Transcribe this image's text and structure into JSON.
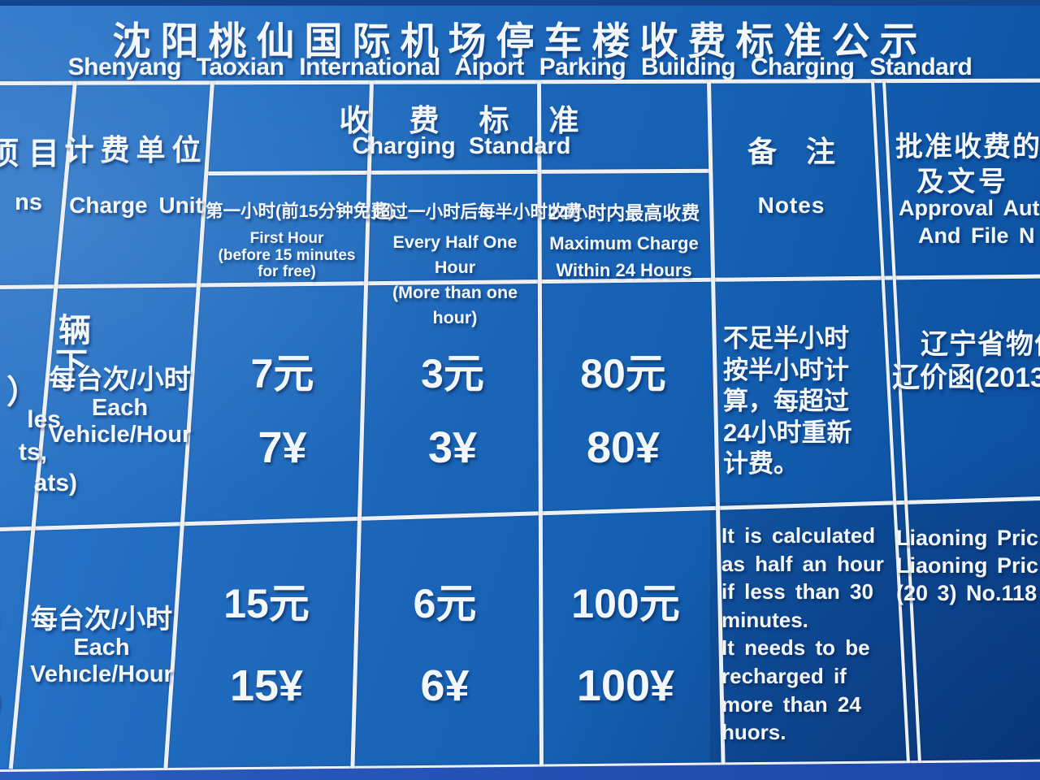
{
  "title": {
    "cn": "沈阳桃仙国际机场停车楼收费标准公示",
    "en": "Shenyang Taoxian International Aiport Parking Building Charging Standard"
  },
  "colors": {
    "sign_blue": "#1560b2",
    "sign_blue_dark": "#0d4d9d",
    "grid_line_white": "#edf1f5",
    "bottom_strip_blue": "#2253b8",
    "text_white": "#f4f7fa"
  },
  "header": {
    "items_fragment_cn": "项目",
    "items_fragment_en": "ns",
    "charge_unit_cn": "计费单位",
    "charge_unit_en": "Charge Unit",
    "charging_standard_cn": "收　费　标　准",
    "charging_standard_en": "Charging Standard",
    "col_first_hour": {
      "cn": "第一小时(前15分钟免费)",
      "en": "First Hour\n(before 15 minutes\nfor free)"
    },
    "col_half_hour": {
      "cn": "超过一小时后每半小时收费",
      "en": "Every Half One Hour\n(More than one hour)"
    },
    "col_max": {
      "cn": "24小时内最高收费",
      "en": "Maximum Charge\nWithin 24 Hours"
    },
    "notes_cn": "备　注",
    "notes_en": "Notes",
    "approval_line1": "批准收费的机",
    "approval_line2": "及文号",
    "approval_line3": "Approval Auth",
    "approval_line4": "And File N"
  },
  "rows": [
    {
      "items_fragments_cn": [
        "辆",
        "下",
        "）"
      ],
      "items_fragments_en": [
        "les",
        "ts,",
        "ats)"
      ],
      "charge_unit_cn": "每台次/小时",
      "charge_unit_en": "Each\nVehicle/Hour",
      "first_hour_yuan": "7元",
      "first_hour_yen": "7¥",
      "half_hour_yuan": "3元",
      "half_hour_yen": "3¥",
      "max_yuan": "80元",
      "max_yen": "80¥",
      "notes": "不足半小时\n按半小时计\n算，每超过\n24小时重新\n计费。",
      "approval_line1": "辽宁省物价",
      "approval_line2": "辽价函(2013"
    },
    {
      "items_fragments_cn": [
        "）",
        "）"
      ],
      "charge_unit_cn": "每台次/小时",
      "charge_unit_en": "Each\nVehıcle/Hour",
      "first_hour_yuan": "15元",
      "first_hour_yen": "15¥",
      "half_hour_yuan": "6元",
      "half_hour_yen": "6¥",
      "max_yuan": "100元",
      "max_yen": "100¥",
      "notes": "It is calculated\nas half an hour\nif less than 30\nminutes.\nIt needs to be\nrecharged if\nmore than 24\nhuors.",
      "approval": "Liaoning Pric\nLiaoning Pric\n(20 3) No.118"
    }
  ]
}
